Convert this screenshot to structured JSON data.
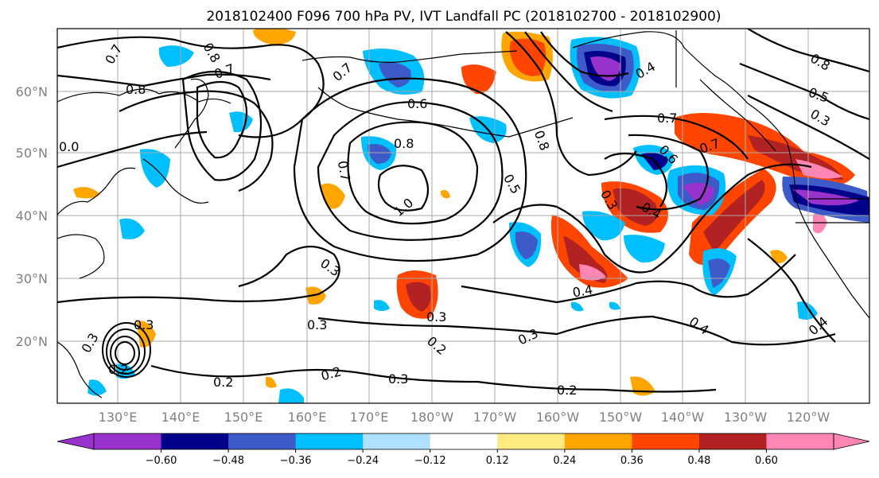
{
  "title": "2018102400 F096 700 hPa PV, IVT Landfall PC (2018102700 - 2018102900)",
  "lat_labels": [
    "60°N",
    "50°N",
    "40°N",
    "30°N",
    "20°N"
  ],
  "lon_labels": [
    "130°E",
    "140°E",
    "150°E",
    "160°E",
    "170°E",
    "180°W",
    "170°W",
    "160°W",
    "150°W",
    "140°W",
    "130°W",
    "120°W"
  ],
  "colorbar": {
    "colors": [
      "#9932cc",
      "#00008b",
      "#3c5ac8",
      "#00bfff",
      "#b0e0ff",
      "#ffffff",
      "#ffeb80",
      "#ffa500",
      "#ff4500",
      "#b22222",
      "#ff85b5"
    ],
    "tick_labels": [
      "−0.60",
      "−0.48",
      "−0.36",
      "−0.24",
      "−0.12",
      "0.12",
      "0.24",
      "0.36",
      "0.48",
      "0.60"
    ]
  },
  "contour_labels": [
    "0.7",
    "0.8",
    "0.8",
    "0.7",
    "0.7",
    "0.6",
    "0.8",
    "0.4",
    "0.7",
    "0.6",
    "0.7",
    "0.8",
    "0.5",
    "0.3",
    "0.0",
    "0.8",
    "0.7",
    "1.0",
    "0.5",
    "0.3",
    "0.4",
    "0.3",
    "0.4",
    "0.3",
    "0.3",
    "0.2",
    "0.3",
    "0.4",
    "0.4",
    "0.3",
    "0.3",
    "0.2",
    "0.2",
    "0.2",
    "0.3",
    "0.2"
  ]
}
